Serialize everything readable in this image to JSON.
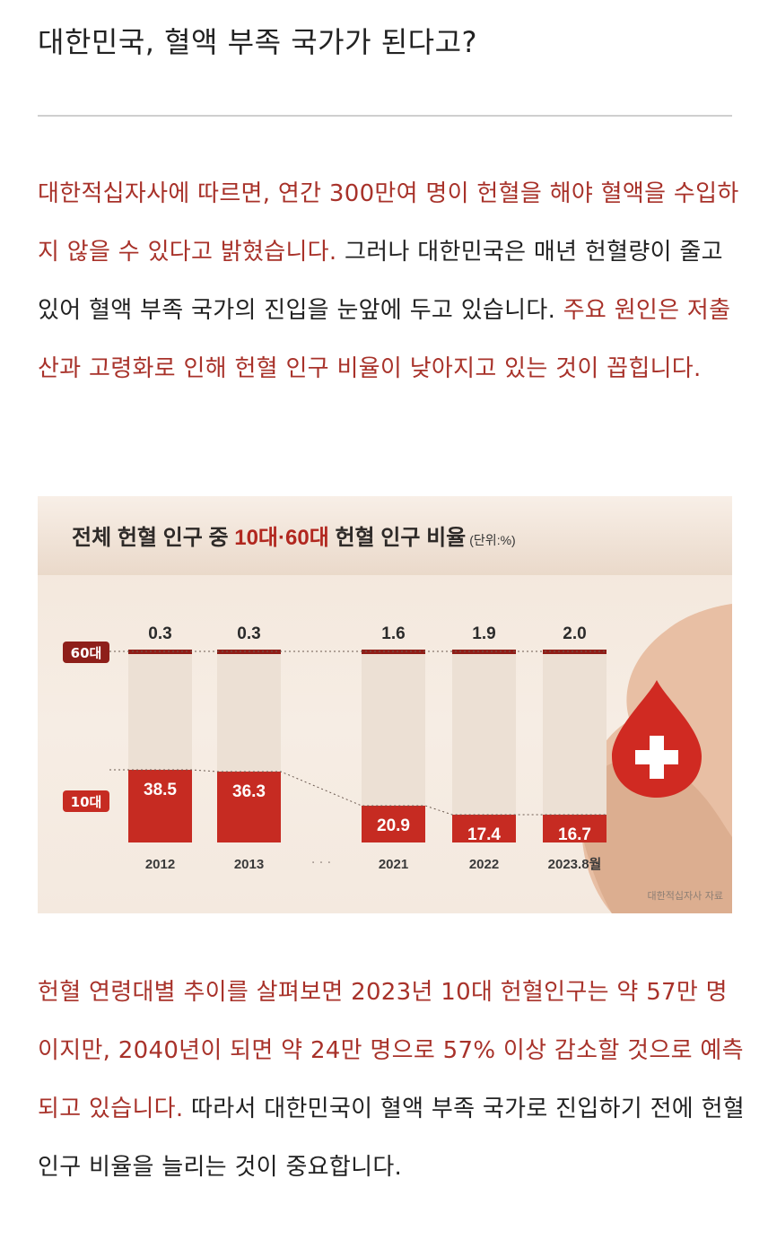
{
  "title": "대한민국, 혈액 부족 국가가 된다고?",
  "paragraph1": {
    "red1": "대한적십자사에 따르면, 연간 300만여 명이 헌혈을 해야 혈액을 수입하지 않을 수 있다고 밝혔습니다.",
    "black1": " 그러나 대한민국은 매년 헌혈량이 줄고 있어 혈액 부족 국가의 진입을 눈앞에 두고 있습니다.",
    "red2": " 주요 원인은 저출산과 고령화로 인해 헌혈 인구 비율이 낮아지고 있는 것이 꼽힙니다."
  },
  "figure": {
    "title_pre": "전체 헌혈 인구 중 ",
    "title_hl": "10대·60대",
    "title_post": " 헌혈 인구 비율",
    "unit": "(단위:%)",
    "source": "대한적십자사 자료"
  },
  "chart_data": {
    "type": "bar",
    "title": "전체 헌혈 인구 중 10대·60대 헌혈 인구 비율",
    "unit": "(단위:%)",
    "categories": [
      "2012",
      "2013",
      "2021",
      "2022",
      "2023.8월"
    ],
    "gap_marker": "· · ·",
    "series": [
      {
        "name": "60대",
        "values": [
          0.3,
          0.3,
          1.6,
          1.9,
          2.0
        ]
      },
      {
        "name": "10대",
        "values": [
          38.5,
          36.3,
          20.9,
          17.4,
          16.7
        ]
      }
    ],
    "value_labels_60": [
      "0.3",
      "0.3",
      "1.6",
      "1.9",
      "2.0"
    ],
    "value_labels_10": [
      "38.5",
      "36.3",
      "20.9",
      "17.4",
      "16.7"
    ],
    "ylim": [
      0,
      100
    ],
    "colors": {
      "bar": "#c62b22",
      "bar_dark": "#8f1d17",
      "column_bg": "#ece0d4",
      "label_bg": "#8e1f1a"
    }
  },
  "paragraph2": {
    "red1": "헌혈 연령대별 추이를 살펴보면 2023년 10대 헌혈인구는 약 57만 명이지만, 2040년이 되면 약 24만 명으로 57% 이상 감소할 것으로 예측되고 있습니다.",
    "black1": " 따라서 대한민국이 혈액 부족 국가로 진입하기 전에 헌혈 인구 비율을 늘리는 것이 중요합니다."
  }
}
